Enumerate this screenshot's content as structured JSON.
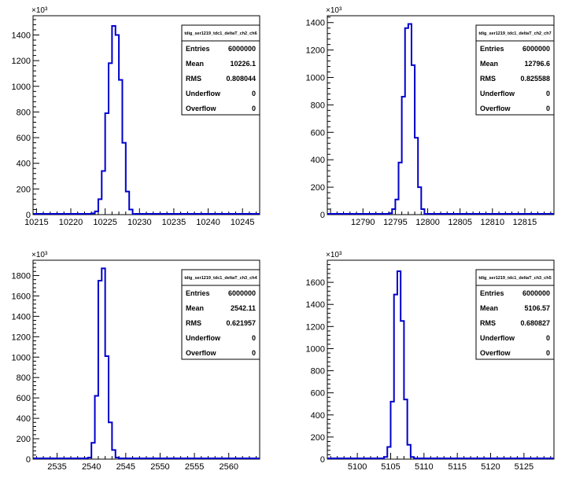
{
  "charts": [
    {
      "stats": {
        "title": "tdig_ser1219_tdc1_deltaT_ch2_ch6",
        "rows": [
          {
            "label": "Entries",
            "value": "6000000"
          },
          {
            "label": "Mean",
            "value": "10226.1"
          },
          {
            "label": "RMS",
            "value": "0.808044"
          },
          {
            "label": "Underflow",
            "value": "0"
          },
          {
            "label": "Overflow",
            "value": "0"
          }
        ]
      },
      "y_exponent": "×10³"
    },
    {
      "stats": {
        "title": "tdig_ser1219_tdc1_deltaT_ch2_ch7",
        "rows": [
          {
            "label": "Entries",
            "value": "6000000"
          },
          {
            "label": "Mean",
            "value": "12796.6"
          },
          {
            "label": "RMS",
            "value": "0.825588"
          },
          {
            "label": "Underflow",
            "value": "0"
          },
          {
            "label": "Overflow",
            "value": "0"
          }
        ]
      },
      "y_exponent": "×10³"
    },
    {
      "stats": {
        "title": "tdig_ser1219_tdc1_deltaT_ch3_ch4",
        "rows": [
          {
            "label": "Entries",
            "value": "6000000"
          },
          {
            "label": "Mean",
            "value": "2542.11"
          },
          {
            "label": "RMS",
            "value": "0.621957"
          },
          {
            "label": "Underflow",
            "value": "0"
          },
          {
            "label": "Overflow",
            "value": "0"
          }
        ]
      },
      "y_exponent": "×10³"
    },
    {
      "stats": {
        "title": "tdig_ser1219_tdc1_deltaT_ch3_ch5",
        "rows": [
          {
            "label": "Entries",
            "value": "6000000"
          },
          {
            "label": "Mean",
            "value": "5106.57"
          },
          {
            "label": "RMS",
            "value": "0.680827"
          },
          {
            "label": "Underflow",
            "value": "0"
          },
          {
            "label": "Overflow",
            "value": "0"
          }
        ]
      },
      "y_exponent": "×10³"
    }
  ],
  "chart_data": [
    {
      "type": "histogram",
      "title": "",
      "xlabel": "",
      "ylabel": "",
      "xlim": [
        10214.5,
        10247.5
      ],
      "ylim": [
        0,
        1550
      ],
      "x_ticks": [
        10215,
        10220,
        10225,
        10230,
        10235,
        10240,
        10245
      ],
      "y_ticks": [
        0,
        200,
        400,
        600,
        800,
        1000,
        1200,
        1400
      ],
      "bin_width": 0.5,
      "bins": [
        {
          "x": 10223.0,
          "y": 10
        },
        {
          "x": 10223.5,
          "y": 25
        },
        {
          "x": 10224.0,
          "y": 120
        },
        {
          "x": 10224.5,
          "y": 340
        },
        {
          "x": 10225.0,
          "y": 790
        },
        {
          "x": 10225.5,
          "y": 1180
        },
        {
          "x": 10226.0,
          "y": 1470
        },
        {
          "x": 10226.5,
          "y": 1400
        },
        {
          "x": 10227.0,
          "y": 1050
        },
        {
          "x": 10227.5,
          "y": 560
        },
        {
          "x": 10228.0,
          "y": 180
        },
        {
          "x": 10228.5,
          "y": 40
        },
        {
          "x": 10229.0,
          "y": 5
        }
      ],
      "line_color": "#0000cc",
      "grid": false
    },
    {
      "type": "histogram",
      "title": "",
      "xlabel": "",
      "ylabel": "",
      "xlim": [
        12784.5,
        12819.5
      ],
      "ylim": [
        0,
        1450
      ],
      "x_ticks": [
        12790,
        12795,
        12800,
        12805,
        12810,
        12815
      ],
      "y_ticks": [
        0,
        200,
        400,
        600,
        800,
        1000,
        1200,
        1400
      ],
      "bin_width": 0.5,
      "bins": [
        {
          "x": 12794.0,
          "y": 10
        },
        {
          "x": 12794.5,
          "y": 40
        },
        {
          "x": 12795.0,
          "y": 110
        },
        {
          "x": 12795.5,
          "y": 380
        },
        {
          "x": 12796.0,
          "y": 860
        },
        {
          "x": 12796.5,
          "y": 1360
        },
        {
          "x": 12797.0,
          "y": 1390
        },
        {
          "x": 12797.5,
          "y": 1090
        },
        {
          "x": 12798.0,
          "y": 560
        },
        {
          "x": 12798.5,
          "y": 200
        },
        {
          "x": 12799.0,
          "y": 40
        },
        {
          "x": 12799.5,
          "y": 5
        }
      ],
      "line_color": "#0000cc",
      "grid": false
    },
    {
      "type": "histogram",
      "title": "",
      "xlabel": "",
      "ylabel": "",
      "xlim": [
        2531.5,
        2564.5
      ],
      "ylim": [
        0,
        1950
      ],
      "x_ticks": [
        2535,
        2540,
        2545,
        2550,
        2555,
        2560
      ],
      "y_ticks": [
        0,
        200,
        400,
        600,
        800,
        1000,
        1200,
        1400,
        1600,
        1800
      ],
      "bin_width": 0.5,
      "bins": [
        {
          "x": 2539.5,
          "y": 15
        },
        {
          "x": 2540.0,
          "y": 160
        },
        {
          "x": 2540.5,
          "y": 620
        },
        {
          "x": 2541.0,
          "y": 1750
        },
        {
          "x": 2541.5,
          "y": 1870
        },
        {
          "x": 2542.0,
          "y": 1010
        },
        {
          "x": 2542.5,
          "y": 360
        },
        {
          "x": 2543.0,
          "y": 90
        },
        {
          "x": 2543.5,
          "y": 15
        }
      ],
      "line_color": "#0000cc",
      "grid": false
    },
    {
      "type": "histogram",
      "title": "",
      "xlabel": "",
      "ylabel": "",
      "xlim": [
        5095.5,
        5129.5
      ],
      "ylim": [
        0,
        1800
      ],
      "x_ticks": [
        5100,
        5105,
        5110,
        5115,
        5120,
        5125
      ],
      "y_ticks": [
        0,
        200,
        400,
        600,
        800,
        1000,
        1200,
        1400,
        1600
      ],
      "bin_width": 0.5,
      "bins": [
        {
          "x": 5104.0,
          "y": 20
        },
        {
          "x": 5104.5,
          "y": 110
        },
        {
          "x": 5105.0,
          "y": 520
        },
        {
          "x": 5105.5,
          "y": 1490
        },
        {
          "x": 5106.0,
          "y": 1700
        },
        {
          "x": 5106.5,
          "y": 1250
        },
        {
          "x": 5107.0,
          "y": 540
        },
        {
          "x": 5107.5,
          "y": 130
        },
        {
          "x": 5108.0,
          "y": 20
        }
      ],
      "line_color": "#0000cc",
      "grid": false
    }
  ]
}
